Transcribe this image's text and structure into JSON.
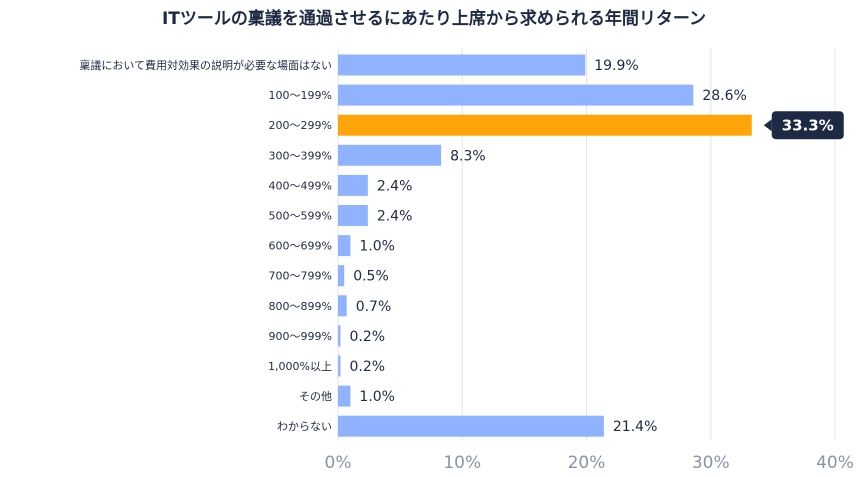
{
  "colors": {
    "bar": "#8fb3ff",
    "highlight": "#ffa50a",
    "grid": "#e2e5ea",
    "callout_bg": "#1e2a44",
    "text": "#1e2a44",
    "tick": "#8a94a8"
  },
  "chart_data": {
    "type": "bar",
    "orientation": "horizontal",
    "title": "ITツールの稟議を通過させるにあたり上席から求められる年間リターン",
    "xlabel": "",
    "ylabel": "",
    "xlim": [
      0,
      40
    ],
    "xticks": [
      0,
      10,
      20,
      30,
      40
    ],
    "xtick_labels": [
      "0%",
      "10%",
      "20%",
      "30%",
      "40%"
    ],
    "grid": true,
    "unit": "%",
    "categories": [
      "稟議において費用対効果の説明が必要な場面はない",
      "100〜199%",
      "200〜299%",
      "300〜399%",
      "400〜499%",
      "500〜599%",
      "600〜699%",
      "700〜799%",
      "800〜899%",
      "900〜999%",
      "1,000%以上",
      "その他",
      "わからない"
    ],
    "values": [
      19.9,
      28.6,
      33.3,
      8.3,
      2.4,
      2.4,
      1.0,
      0.5,
      0.7,
      0.2,
      0.2,
      1.0,
      21.4
    ],
    "value_labels": [
      "19.9%",
      "28.6%",
      "33.3%",
      "8.3%",
      "2.4%",
      "2.4%",
      "1.0%",
      "0.5%",
      "0.7%",
      "0.2%",
      "0.2%",
      "1.0%",
      "21.4%"
    ],
    "highlight_index": 2
  }
}
